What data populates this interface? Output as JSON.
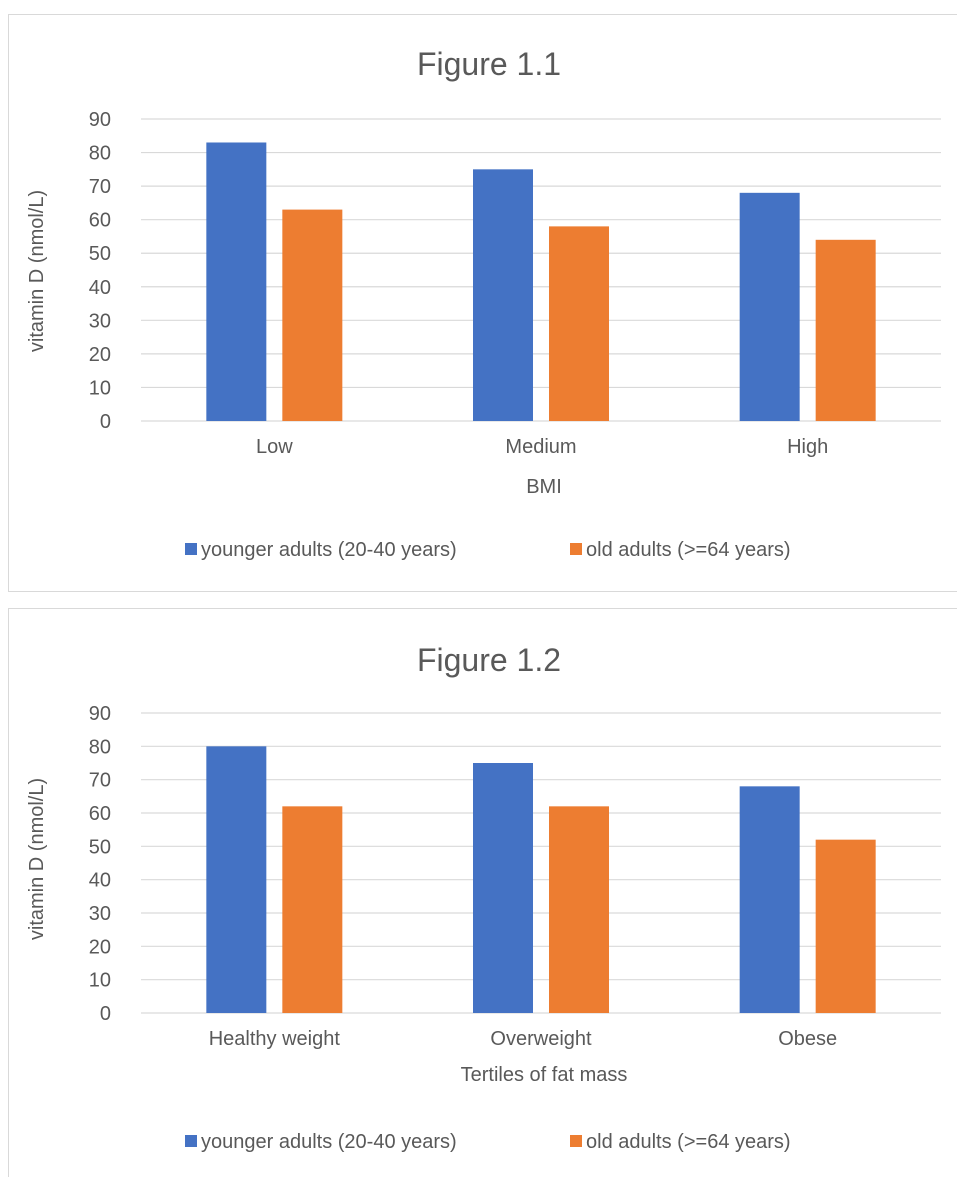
{
  "chart_data": [
    {
      "type": "bar",
      "title": "Figure 1.1",
      "xlabel": "BMI",
      "ylabel": "vitamin D (nmol/L)",
      "categories": [
        "Low",
        "Medium",
        "High"
      ],
      "ylim": [
        0,
        90
      ],
      "yticks": [
        0,
        10,
        20,
        30,
        40,
        50,
        60,
        70,
        80,
        90
      ],
      "grid": true,
      "legend": "bottom",
      "series": [
        {
          "name": "younger adults (20-40 years)",
          "color": "#4472C4",
          "values": [
            83,
            75,
            68
          ]
        },
        {
          "name": "old adults (>=64 years)",
          "color": "#ED7D31",
          "values": [
            63,
            58,
            54
          ]
        }
      ]
    },
    {
      "type": "bar",
      "title": "Figure 1.2",
      "xlabel": "Tertiles of fat mass",
      "ylabel": "vitamin D (nmol/L)",
      "categories": [
        "Healthy weight",
        "Overweight",
        "Obese"
      ],
      "ylim": [
        0,
        90
      ],
      "yticks": [
        0,
        10,
        20,
        30,
        40,
        50,
        60,
        70,
        80,
        90
      ],
      "grid": true,
      "legend": "bottom",
      "series": [
        {
          "name": "younger adults (20-40 years)",
          "color": "#4472C4",
          "values": [
            80,
            75,
            68
          ]
        },
        {
          "name": "old adults (>=64 years)",
          "color": "#ED7D31",
          "values": [
            62,
            62,
            52
          ]
        }
      ]
    }
  ]
}
